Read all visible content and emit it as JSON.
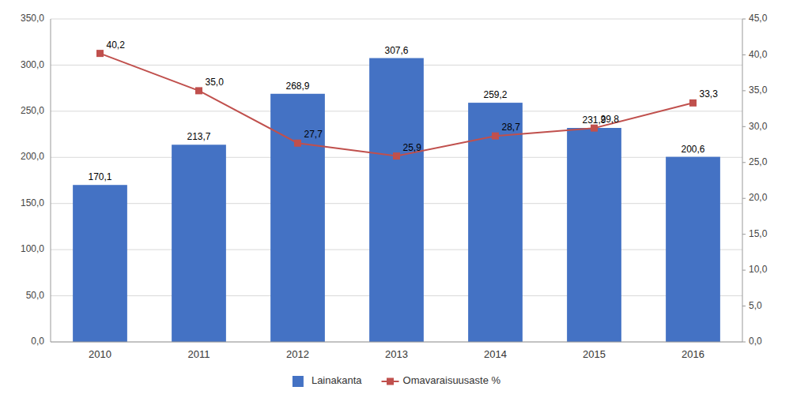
{
  "chart_data": {
    "type": "bar",
    "categories": [
      "2010",
      "2011",
      "2012",
      "2013",
      "2014",
      "2015",
      "2016"
    ],
    "series": [
      {
        "name": "Lainakanta",
        "type": "bar",
        "color": "#4472C4",
        "values": [
          170.1,
          213.7,
          268.9,
          307.6,
          259.2,
          231.9,
          200.6
        ],
        "value_labels": [
          "170,1",
          "213,7",
          "268,9",
          "307,6",
          "259,2",
          "231,9",
          "200,6"
        ]
      },
      {
        "name": "Omavaraisuusaste %",
        "type": "line",
        "axis": "y2",
        "color": "#C0504D",
        "marker": "square",
        "values": [
          40.2,
          35.0,
          27.7,
          25.9,
          28.7,
          29.8,
          33.3
        ],
        "value_labels": [
          "40,2",
          "35,0",
          "27,7",
          "25,9",
          "28,7",
          "29,8",
          "33,3"
        ]
      }
    ],
    "ylim": [
      0,
      350
    ],
    "yticks": [
      {
        "value": 0,
        "label": "0,0"
      },
      {
        "value": 50,
        "label": "50,0"
      },
      {
        "value": 100,
        "label": "100,0"
      },
      {
        "value": 150,
        "label": "150,0"
      },
      {
        "value": 200,
        "label": "200,0"
      },
      {
        "value": 250,
        "label": "250,0"
      },
      {
        "value": 300,
        "label": "300,0"
      },
      {
        "value": 350,
        "label": "350,0"
      }
    ],
    "y2lim": [
      0,
      45
    ],
    "y2ticks": [
      {
        "value": 0,
        "label": "0,0"
      },
      {
        "value": 5,
        "label": "5,0"
      },
      {
        "value": 10,
        "label": "10,0"
      },
      {
        "value": 15,
        "label": "15,0"
      },
      {
        "value": 20,
        "label": "20,0"
      },
      {
        "value": 25,
        "label": "25,0"
      },
      {
        "value": 30,
        "label": "30,0"
      },
      {
        "value": 35,
        "label": "35,0"
      },
      {
        "value": 40,
        "label": "40,0"
      },
      {
        "value": 45,
        "label": "45,0"
      }
    ],
    "grid": true,
    "legend": "bottom",
    "data_labels": true
  }
}
